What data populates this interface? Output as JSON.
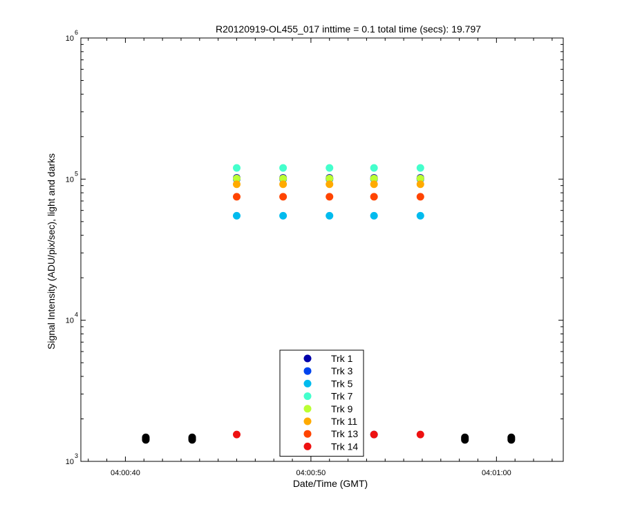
{
  "chart_data": {
    "type": "scatter",
    "title": "R20120919-OL455_017 inttime = 0.1 total time (secs): 19.797",
    "xlabel": "Date/Time (GMT)",
    "ylabel": "Signal Intensity (ADU/pix/sec), light and darks",
    "x_scale": "time",
    "y_scale": "log",
    "xlim": [
      "04:00:37.6",
      "04:01:03.6"
    ],
    "ylim": [
      1000,
      1000000
    ],
    "x_ticks": [
      {
        "value": "04:00:40",
        "label": "04:00:40"
      },
      {
        "value": "04:00:50",
        "label": "04:00:50"
      },
      {
        "value": "04:01:00",
        "label": "04:01:00"
      }
    ],
    "y_ticks": [
      {
        "value": 1000,
        "base": "10",
        "exp": "3"
      },
      {
        "value": 10000,
        "base": "10",
        "exp": "4"
      },
      {
        "value": 100000,
        "base": "10",
        "exp": "5"
      },
      {
        "value": 1000000,
        "base": "10",
        "exp": "6"
      }
    ],
    "grid": false,
    "legend_position": "bottom-center",
    "series": [
      {
        "name": "Trk 1",
        "color": "#0000aa",
        "x": [
          "04:00:46.0",
          "04:00:48.5",
          "04:00:51.0",
          "04:00:53.4",
          "04:00:55.9"
        ],
        "y": [
          102000,
          102000,
          102000,
          102000,
          102000
        ]
      },
      {
        "name": "Trk 3",
        "color": "#0044ee",
        "x": [
          "04:00:46.0",
          "04:00:48.5",
          "04:00:51.0",
          "04:00:53.4",
          "04:00:55.9",
          "04:00:53.4"
        ],
        "y": [
          100000,
          100000,
          100000,
          100000,
          100000,
          1550
        ]
      },
      {
        "name": "Trk 5",
        "color": "#00bbee",
        "x": [
          "04:00:46.0",
          "04:00:48.5",
          "04:00:51.0",
          "04:00:53.4",
          "04:00:55.9"
        ],
        "y": [
          55000,
          55000,
          55000,
          55000,
          55000
        ]
      },
      {
        "name": "Trk 7",
        "color": "#44ffcc",
        "x": [
          "04:00:46.0",
          "04:00:48.5",
          "04:00:51.0",
          "04:00:53.4",
          "04:00:55.9"
        ],
        "y": [
          120000,
          120000,
          120000,
          120000,
          120000
        ]
      },
      {
        "name": "Trk 9",
        "color": "#bbff33",
        "x": [
          "04:00:46.0",
          "04:00:48.5",
          "04:00:51.0",
          "04:00:53.4",
          "04:00:55.9"
        ],
        "y": [
          101000,
          101000,
          101000,
          101000,
          101000
        ]
      },
      {
        "name": "Trk 11",
        "color": "#ffaa00",
        "x": [
          "04:00:46.0",
          "04:00:48.5",
          "04:00:51.0",
          "04:00:53.4",
          "04:00:55.9"
        ],
        "y": [
          92000,
          92000,
          92000,
          92000,
          92000
        ]
      },
      {
        "name": "Trk 13",
        "color": "#ff4400",
        "x": [
          "04:00:46.0",
          "04:00:48.5",
          "04:00:51.0",
          "04:00:53.4",
          "04:00:55.9"
        ],
        "y": [
          75000,
          75000,
          75000,
          75000,
          75000
        ]
      },
      {
        "name": "Trk 14",
        "color": "#ee1111",
        "x": [
          "04:00:46.0",
          "04:00:53.4",
          "04:00:55.9"
        ],
        "y": [
          1550,
          1550,
          1550
        ]
      }
    ],
    "darks": {
      "color": "#000000",
      "x": [
        "04:00:41.1",
        "04:00:41.1",
        "04:00:41.1",
        "04:00:43.6",
        "04:00:43.6",
        "04:00:43.6",
        "04:00:58.3",
        "04:00:58.3",
        "04:00:58.3",
        "04:01:00.8",
        "04:01:00.8",
        "04:01:00.8"
      ],
      "y": [
        1420,
        1450,
        1480,
        1420,
        1450,
        1480,
        1420,
        1450,
        1480,
        1420,
        1450,
        1480
      ]
    }
  }
}
